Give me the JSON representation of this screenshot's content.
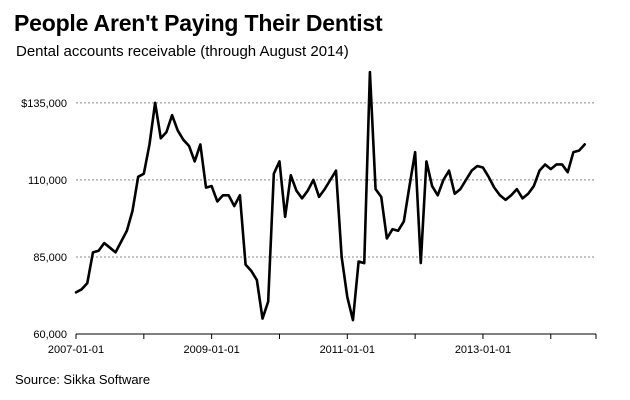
{
  "header": {
    "title": "People Aren't Paying Their Dentist",
    "subtitle": "Dental accounts receivable (through August 2014)"
  },
  "footer": {
    "source": "Source: Sikka Software"
  },
  "colors": {
    "line": "#000000",
    "grid": "#888888",
    "background": "#ffffff"
  },
  "chart_data": {
    "type": "line",
    "title": "People Aren't Paying Their Dentist",
    "subtitle": "Dental accounts receivable (through August 2014)",
    "xlabel": "",
    "ylabel": "",
    "x_start": "2007-01",
    "x_end": "2014-08",
    "frequency": "monthly",
    "xlim_months": [
      0,
      92
    ],
    "ylim": [
      60000,
      145000
    ],
    "y_ticks": [
      {
        "value": 60000,
        "label": "60,000"
      },
      {
        "value": 85000,
        "label": "85,000"
      },
      {
        "value": 110000,
        "label": "110,000"
      },
      {
        "value": 135000,
        "label": "$135,000"
      }
    ],
    "x_ticks": [
      {
        "month_index": 0,
        "label": "2007-01-01"
      },
      {
        "month_index": 24,
        "label": "2009-01-01"
      },
      {
        "month_index": 48,
        "label": "2011-01-01"
      },
      {
        "month_index": 72,
        "label": "2013-01-01"
      }
    ],
    "grid": "horizontal dotted",
    "series": [
      {
        "name": "Dental accounts receivable",
        "values": [
          73500,
          74500,
          76500,
          86500,
          87000,
          89500,
          88000,
          86500,
          90000,
          93500,
          100000,
          111000,
          112000,
          121500,
          135000,
          123500,
          125500,
          131000,
          126000,
          123000,
          121000,
          116000,
          121500,
          107500,
          108000,
          103000,
          105000,
          105000,
          101500,
          105000,
          82500,
          80500,
          77500,
          65000,
          70500,
          112000,
          116000,
          98000,
          111500,
          106500,
          104000,
          106500,
          110000,
          104500,
          107000,
          110000,
          113000,
          85000,
          72000,
          64500,
          83500,
          83000,
          145000,
          107000,
          104500,
          91000,
          94000,
          93500,
          96500,
          108000,
          119000,
          83000,
          116000,
          108000,
          105000,
          110000,
          113000,
          105500,
          107000,
          110000,
          113000,
          114500,
          114000,
          111000,
          107500,
          105000,
          103500,
          105000,
          107000,
          104000,
          105500,
          108000,
          113000,
          115000,
          113500,
          115000,
          115000,
          112500,
          119000,
          119500,
          121500
        ]
      }
    ]
  }
}
